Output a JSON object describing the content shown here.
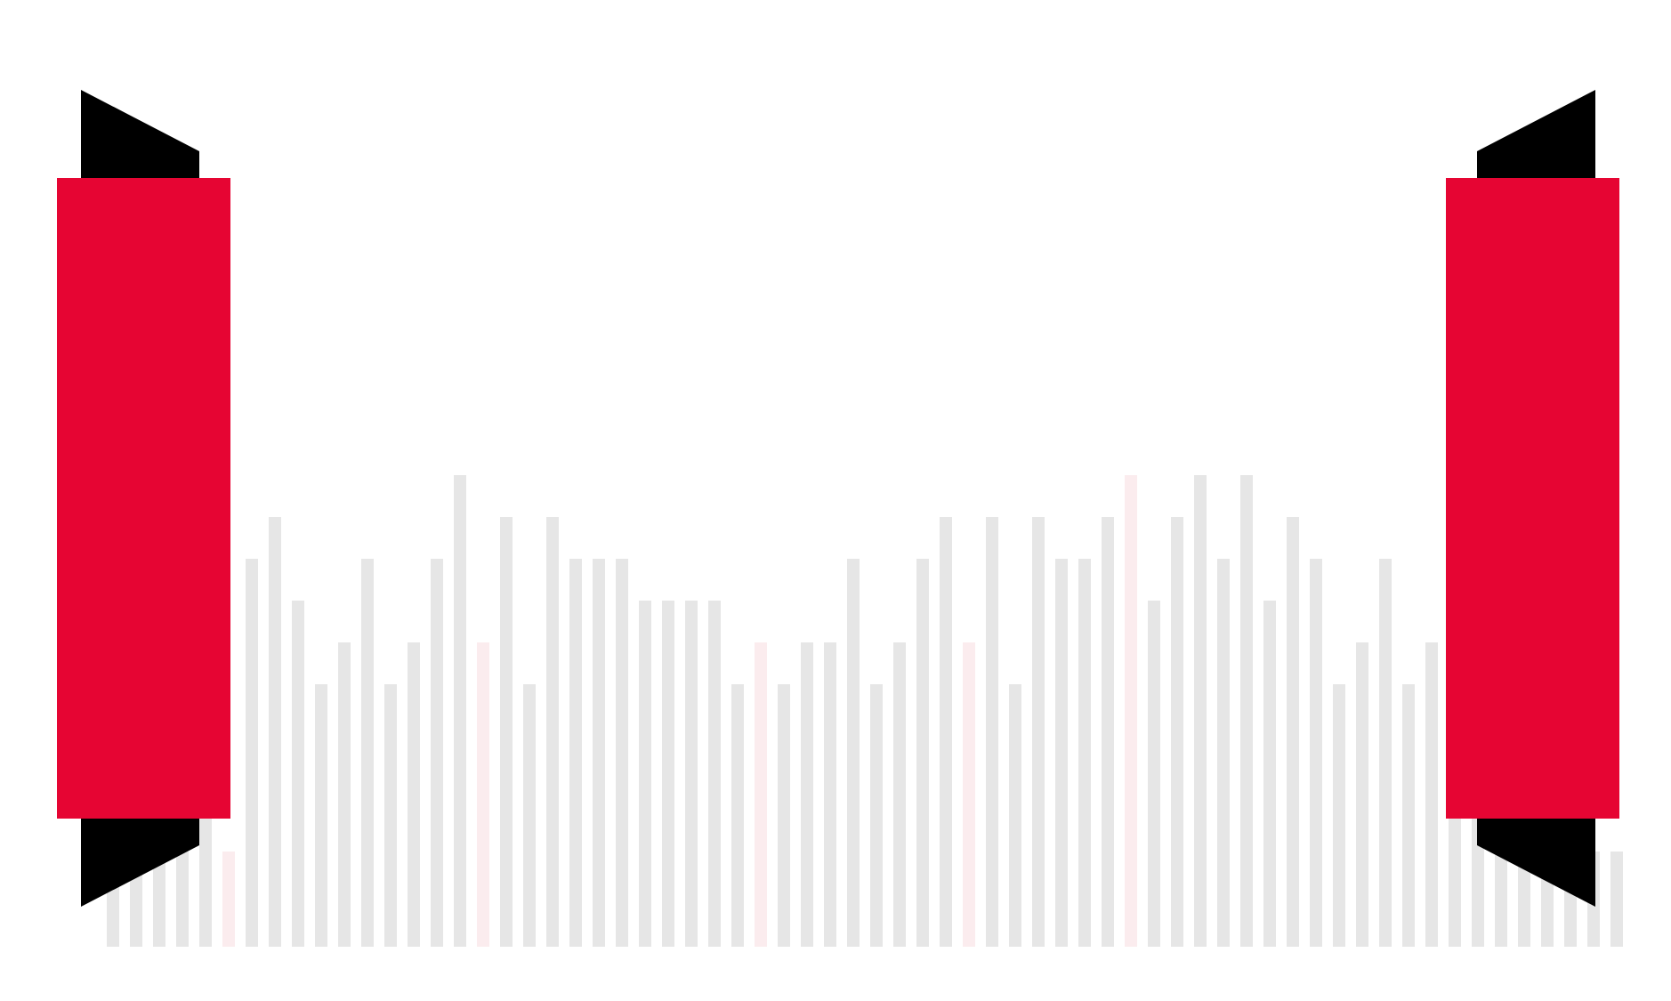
{
  "colors": {
    "background": "#ffffff",
    "banner_red": "#e60533",
    "banner_fold": "#000000",
    "bar_gray": "#e6e6e6",
    "bar_pink": "#fbecee"
  },
  "equalizer": {
    "levels": [
      0.1,
      0.1,
      0.1,
      0.1,
      0.4,
      0.1,
      0.8,
      0.9,
      0.7,
      0.5,
      0.6,
      0.8,
      0.5,
      0.6,
      0.8,
      1.0,
      0.6,
      0.9,
      0.5,
      0.9,
      0.8,
      0.8,
      0.8,
      0.7,
      0.7,
      0.7,
      0.7,
      0.5,
      0.6,
      0.5,
      0.6,
      0.6,
      0.8,
      0.5,
      0.6,
      0.8,
      0.9,
      0.6,
      0.9,
      0.5,
      0.9,
      0.8,
      0.8,
      0.9,
      1.0,
      0.7,
      0.9,
      1.0,
      0.8,
      1.0,
      0.7,
      0.9,
      0.8,
      0.5,
      0.6,
      0.8,
      0.5,
      0.6,
      0.8,
      0.9,
      1.0,
      0.5,
      0.4,
      0.1,
      0.1,
      0.1
    ],
    "highlighted": [
      5,
      16,
      28,
      37,
      44
    ]
  }
}
